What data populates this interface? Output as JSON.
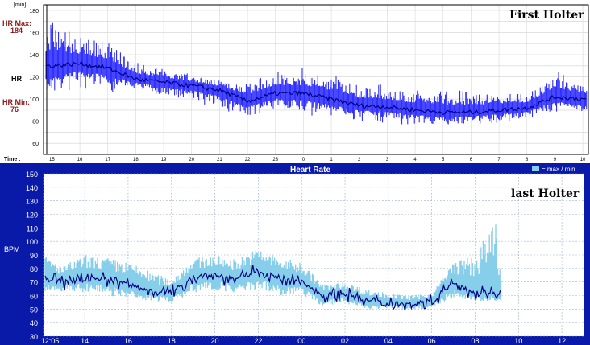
{
  "panel_top": {
    "unit_label": "[min]",
    "title": "First Holter",
    "hr_max_label": "HR Max:",
    "hr_max_value": "184",
    "hr_label": "HR",
    "hr_min_label": "HR Min:",
    "hr_min_value": "76",
    "time_label": "Time :",
    "colors": {
      "trace": "#1a1aff",
      "median": "#000080",
      "accent_text": "#8b1a1a",
      "grid": "#c8c8c8",
      "frame": "#000000"
    }
  },
  "panel_bottom": {
    "title": "Heart Rate",
    "legend_label": "= max / min",
    "overlay_label": "last Holter",
    "ylabel": "BPM",
    "colors": {
      "frame_bg": "#0a1aa8",
      "band": "#87ceeb",
      "line": "#000080",
      "grid": "#9db0d8",
      "text": "#ffffff"
    }
  },
  "chart_data": [
    {
      "type": "line",
      "title": "First Holter",
      "ylabel": "",
      "yticks": [
        60,
        80,
        100,
        120,
        140,
        160,
        180
      ],
      "ylim": [
        50,
        185
      ],
      "xticks": [
        "15",
        "16",
        "17",
        "18",
        "19",
        "20",
        "21",
        "22",
        "23",
        "0",
        "1",
        "2",
        "3",
        "4",
        "5",
        "6",
        "7",
        "8",
        "9",
        "10"
      ],
      "x_unit": "hour of day",
      "series": [
        {
          "name": "HR Max",
          "x": [
            15,
            16,
            17,
            18,
            19,
            20,
            21,
            22,
            23,
            24,
            25,
            26,
            27,
            28,
            29,
            30,
            31,
            32,
            33,
            34
          ],
          "values": [
            175,
            160,
            155,
            135,
            130,
            125,
            120,
            118,
            130,
            130,
            125,
            118,
            115,
            110,
            110,
            110,
            110,
            108,
            130,
            118
          ]
        },
        {
          "name": "HR",
          "x": [
            15,
            16,
            17,
            18,
            19,
            20,
            21,
            22,
            23,
            24,
            25,
            26,
            27,
            28,
            29,
            30,
            31,
            32,
            33,
            34
          ],
          "values": [
            130,
            132,
            128,
            118,
            115,
            112,
            108,
            98,
            105,
            105,
            100,
            94,
            93,
            90,
            88,
            88,
            90,
            92,
            102,
            100
          ]
        },
        {
          "name": "HR Min",
          "x": [
            15,
            16,
            17,
            18,
            19,
            20,
            21,
            22,
            23,
            24,
            25,
            26,
            27,
            28,
            29,
            30,
            31,
            32,
            33,
            34
          ],
          "values": [
            95,
            110,
            105,
            108,
            100,
            98,
            90,
            80,
            90,
            85,
            82,
            80,
            78,
            75,
            75,
            76,
            78,
            80,
            88,
            82
          ]
        }
      ]
    },
    {
      "type": "line",
      "title": "Heart Rate",
      "ylabel": "BPM",
      "yticks": [
        30,
        40,
        50,
        60,
        70,
        80,
        90,
        100,
        110,
        120,
        130,
        140,
        150
      ],
      "ylim": [
        30,
        150
      ],
      "xticks": [
        "12:05",
        "14",
        "16",
        "18",
        "20",
        "22",
        "00",
        "02",
        "04",
        "06",
        "08",
        "10",
        "12"
      ],
      "x_unit": "hour of day",
      "series": [
        {
          "name": "max",
          "x": [
            12.1,
            13,
            14,
            15,
            16,
            17,
            18,
            19,
            20,
            21,
            22,
            23,
            24,
            25,
            26,
            27,
            28,
            29,
            30,
            31,
            32,
            33,
            33.2
          ],
          "values": [
            90,
            82,
            90,
            88,
            85,
            78,
            72,
            88,
            90,
            87,
            95,
            88,
            85,
            68,
            70,
            65,
            62,
            60,
            62,
            85,
            90,
            118,
            70
          ]
        },
        {
          "name": "HR",
          "x": [
            12.1,
            13,
            14,
            15,
            16,
            17,
            18,
            19,
            20,
            21,
            22,
            23,
            24,
            25,
            26,
            27,
            28,
            29,
            30,
            31,
            32,
            33,
            33.2
          ],
          "values": [
            72,
            70,
            74,
            72,
            68,
            64,
            62,
            74,
            75,
            72,
            78,
            72,
            70,
            60,
            62,
            56,
            55,
            54,
            56,
            70,
            62,
            62,
            60
          ]
        },
        {
          "name": "min",
          "x": [
            12.1,
            13,
            14,
            15,
            16,
            17,
            18,
            19,
            20,
            21,
            22,
            23,
            24,
            25,
            26,
            27,
            28,
            29,
            30,
            31,
            32,
            33,
            33.2
          ],
          "values": [
            62,
            63,
            62,
            60,
            58,
            56,
            55,
            62,
            64,
            62,
            64,
            60,
            60,
            52,
            54,
            50,
            50,
            50,
            50,
            58,
            56,
            56,
            55
          ]
        }
      ]
    }
  ]
}
